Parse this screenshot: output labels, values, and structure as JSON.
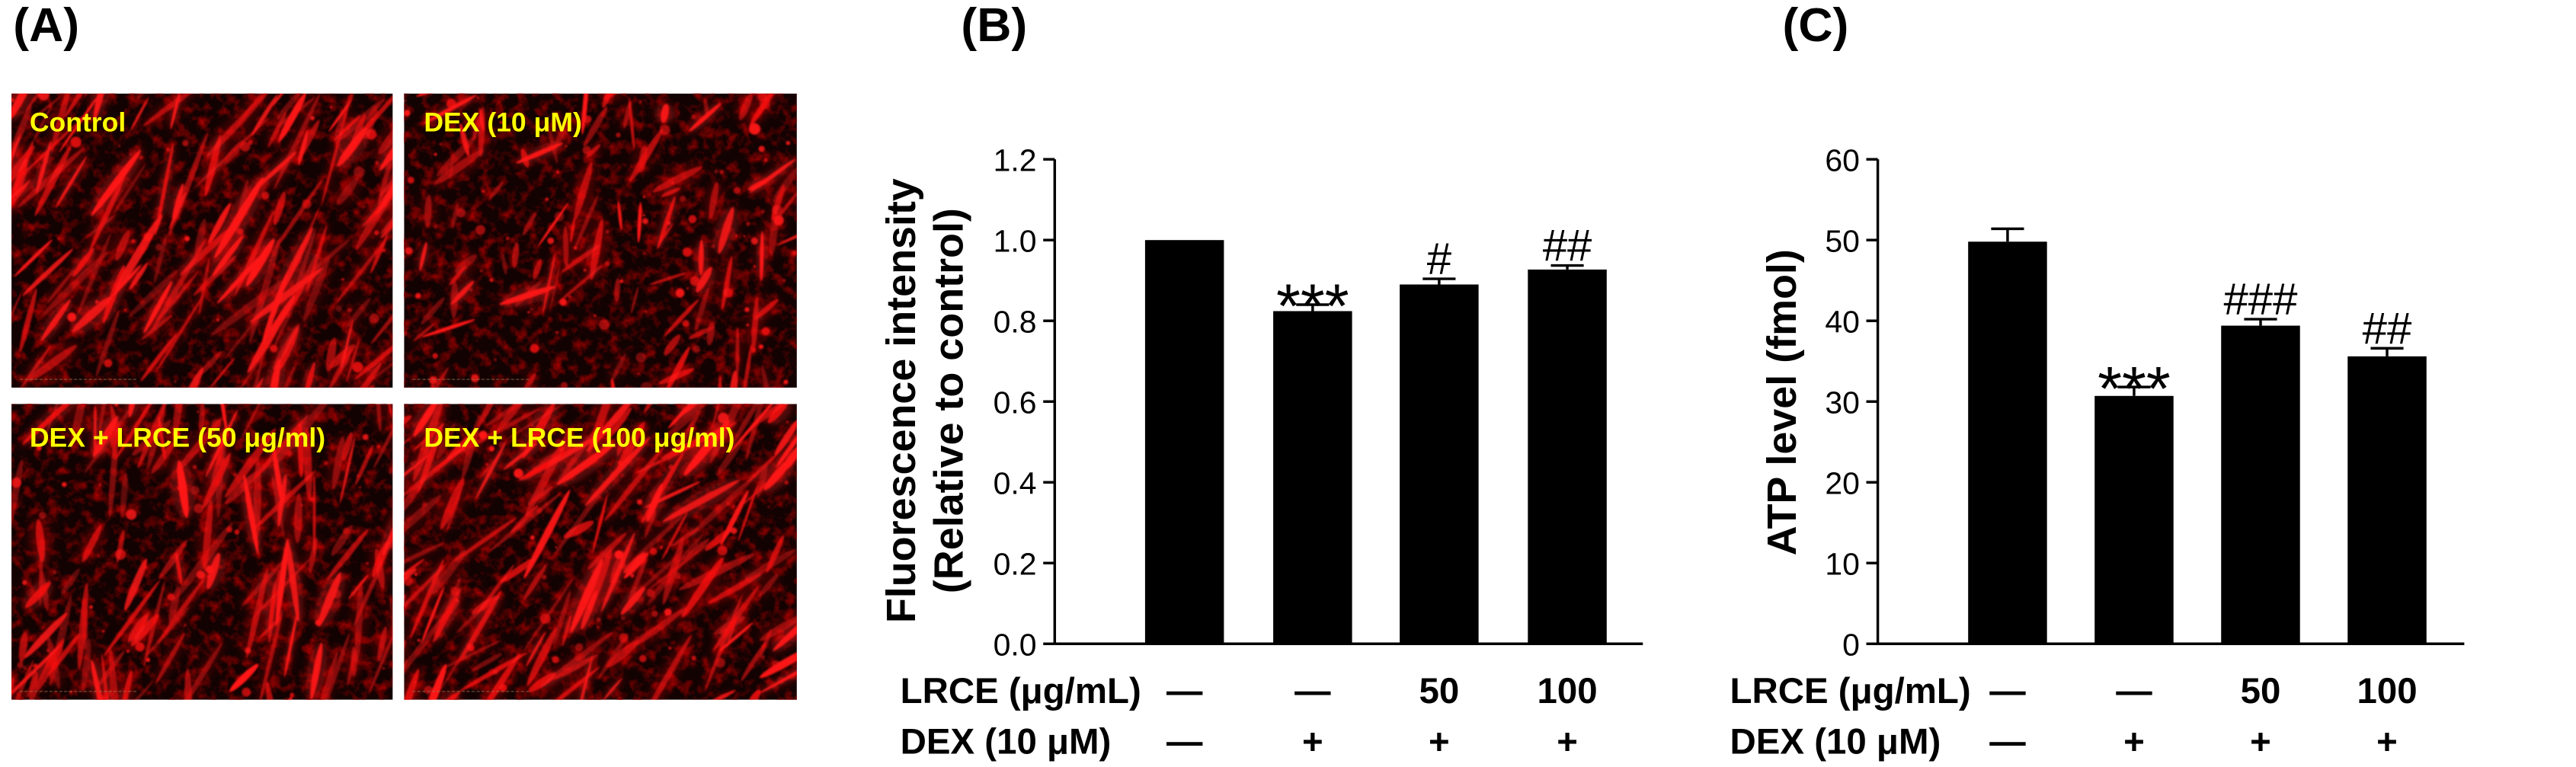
{
  "figure": {
    "panel_a": {
      "label": "(A)",
      "micrographs": [
        {
          "caption": "Control"
        },
        {
          "caption": "DEX (10 μM)"
        },
        {
          "caption": "DEX + LRCE (50 μg/ml)"
        },
        {
          "caption": "DEX + LRCE (100 μg/ml)"
        }
      ]
    }
  },
  "colors": {
    "background": "#ffffff",
    "stain": "#ff1414",
    "micrograph_background": "#120202",
    "caption": "#ffff00",
    "bar": "#000000",
    "axis": "#000000"
  },
  "chart_data": [
    {
      "panel_label": "(B)",
      "type": "bar",
      "ylabel_lines": [
        "Fluorescence intensity",
        "(Relative to control)"
      ],
      "ylim": [
        0,
        1.2
      ],
      "yticks": [
        "0.0",
        "0.2",
        "0.4",
        "0.6",
        "0.8",
        "1.0",
        "1.2"
      ],
      "values": [
        1.0,
        0.824,
        0.89,
        0.927
      ],
      "errors": [
        0,
        0.016,
        0.014,
        0.01
      ],
      "annotations": [
        null,
        "***",
        "#",
        "##"
      ],
      "treatment_rows": [
        {
          "label": "LRCE (μg/mL)",
          "values": [
            "—",
            "—",
            "50",
            "100"
          ]
        },
        {
          "label": "DEX (10 μM)",
          "values": [
            "—",
            "+",
            "+",
            "+"
          ]
        }
      ]
    },
    {
      "panel_label": "(C)",
      "type": "bar",
      "ylabel_lines": [
        "ATP level (fmol)"
      ],
      "ylim": [
        0,
        60
      ],
      "yticks": [
        "0",
        "10",
        "20",
        "30",
        "40",
        "50",
        "60"
      ],
      "values": [
        49.8,
        30.7,
        39.4,
        35.6
      ],
      "errors": [
        1.6,
        1.1,
        0.8,
        1.0
      ],
      "annotations": [
        null,
        "***",
        "###",
        "##"
      ],
      "treatment_rows": [
        {
          "label": "LRCE (μg/mL)",
          "values": [
            "—",
            "—",
            "50",
            "100"
          ]
        },
        {
          "label": "DEX (10 μM)",
          "values": [
            "—",
            "+",
            "+",
            "+"
          ]
        }
      ]
    }
  ]
}
